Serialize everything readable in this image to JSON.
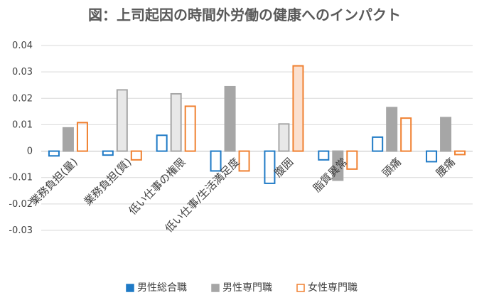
{
  "chart_data": {
    "type": "bar",
    "title": "図：上司起因の時間外労働の健康へのインパクト",
    "categories": [
      "業務負担(量)",
      "業務負担(質)",
      "低い仕事の権限",
      "低い仕事/生活満足度",
      "腹囲",
      "脂質異常",
      "頭痛",
      "腰痛"
    ],
    "series": [
      {
        "name": "男性総合職",
        "color": "#1f7ac6",
        "fill": "none",
        "values": [
          -0.0018,
          -0.0015,
          0.006,
          -0.0075,
          -0.0122,
          -0.0033,
          0.0053,
          -0.004
        ]
      },
      {
        "name": "男性専門職",
        "color": "#a6a6a6",
        "fill": "#a6a6a6",
        "values": [
          0.0088,
          0.0232,
          0.0217,
          0.0244,
          0.0103,
          -0.011,
          0.0165,
          0.0127
        ]
      },
      {
        "name": "女性専門職",
        "color": "#f08030",
        "fill": "none",
        "values": [
          0.0108,
          -0.0033,
          0.017,
          -0.0075,
          0.0323,
          -0.0068,
          0.0125,
          -0.0013
        ]
      }
    ],
    "highlight": {
      "男性専門職": {
        "fill": "#e8e8e8",
        "indices": [
          1,
          2,
          3,
          4
        ],
        "strong_fill": "#a6a6a6",
        "strong_indices": [
          3
        ]
      },
      "女性専門職": {
        "fill": "#fbe0cf",
        "indices": [
          4
        ]
      }
    },
    "yticks": [
      "0.04",
      "0.03",
      "0.02",
      "0.01",
      "0",
      "-0.01",
      "-0.02",
      "-0.03"
    ],
    "ylim": [
      -0.03,
      0.04
    ],
    "grid": true,
    "legend_position": "bottom"
  }
}
